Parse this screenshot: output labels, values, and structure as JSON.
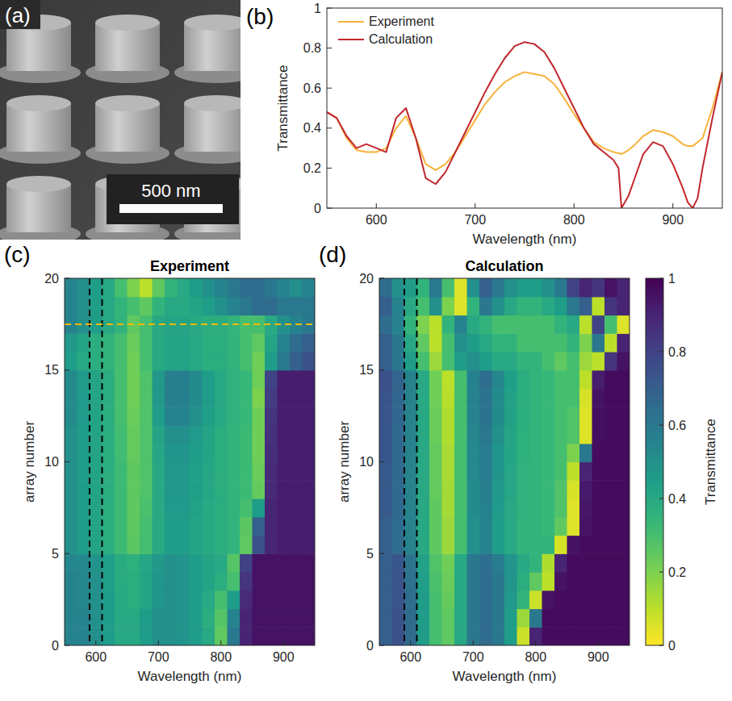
{
  "chart_data": [
    {
      "type": "line",
      "label": "(b)",
      "x_label": "Wavelength (nm)",
      "y_label": "Transmittance",
      "x": [
        550,
        560,
        570,
        580,
        590,
        600,
        610,
        620,
        630,
        640,
        650,
        660,
        670,
        680,
        690,
        700,
        710,
        720,
        730,
        740,
        750,
        760,
        770,
        780,
        790,
        800,
        810,
        820,
        830,
        840,
        845,
        848,
        855,
        860,
        870,
        880,
        890,
        900,
        910,
        915,
        920,
        925,
        930,
        940,
        950
      ],
      "series": [
        {
          "name": "Experiment",
          "color": "#f7b23b",
          "values": [
            0.48,
            0.45,
            0.35,
            0.29,
            0.28,
            0.28,
            0.3,
            0.4,
            0.46,
            0.35,
            0.22,
            0.19,
            0.22,
            0.28,
            0.36,
            0.44,
            0.52,
            0.58,
            0.63,
            0.66,
            0.68,
            0.67,
            0.66,
            0.62,
            0.55,
            0.47,
            0.4,
            0.33,
            0.3,
            0.28,
            0.275,
            0.27,
            0.29,
            0.31,
            0.36,
            0.39,
            0.38,
            0.36,
            0.32,
            0.31,
            0.31,
            0.33,
            0.35,
            0.5,
            0.68
          ]
        },
        {
          "name": "Calculation",
          "color": "#c1272d",
          "values": [
            0.48,
            0.45,
            0.36,
            0.3,
            0.32,
            0.3,
            0.28,
            0.45,
            0.5,
            0.35,
            0.15,
            0.12,
            0.18,
            0.28,
            0.38,
            0.48,
            0.58,
            0.67,
            0.75,
            0.81,
            0.83,
            0.82,
            0.78,
            0.7,
            0.6,
            0.5,
            0.4,
            0.32,
            0.28,
            0.24,
            0.2,
            0,
            0.06,
            0.13,
            0.27,
            0.33,
            0.31,
            0.22,
            0.1,
            0.03,
            0,
            0.05,
            0.2,
            0.45,
            0.68
          ]
        }
      ],
      "xlim": [
        550,
        950
      ],
      "ylim": [
        0,
        1
      ],
      "xticks": [
        600,
        700,
        800,
        900
      ],
      "yticks": [
        0,
        0.2,
        0.4,
        0.6,
        0.8,
        1
      ],
      "legend": "upper left"
    },
    {
      "type": "heatmap",
      "label": "(c)",
      "title": "Experiment",
      "x_label": "Wavelength (nm)",
      "y_label": "array number",
      "x_bins": [
        550,
        570,
        590,
        610,
        630,
        650,
        670,
        690,
        710,
        730,
        750,
        770,
        790,
        810,
        830,
        850,
        870,
        890,
        910,
        930,
        950
      ],
      "y_bins": [
        0,
        1,
        2,
        3,
        4,
        5,
        6,
        7,
        8,
        9,
        10,
        11,
        12,
        13,
        14,
        15,
        16,
        17,
        18,
        19,
        20
      ],
      "cells": [
        [
          0.55,
          0.55,
          0.5,
          0.45,
          0.4,
          0.4,
          0.45,
          0.5,
          0.5,
          0.48,
          0.45,
          0.4,
          0.25,
          0.6,
          0.9,
          0.95,
          0.95,
          0.95,
          0.95,
          0.95
        ],
        [
          0.55,
          0.55,
          0.5,
          0.45,
          0.4,
          0.4,
          0.45,
          0.5,
          0.5,
          0.48,
          0.45,
          0.38,
          0.27,
          0.55,
          0.9,
          0.95,
          0.95,
          0.95,
          0.95,
          0.95
        ],
        [
          0.55,
          0.54,
          0.5,
          0.45,
          0.4,
          0.38,
          0.42,
          0.48,
          0.5,
          0.48,
          0.45,
          0.4,
          0.3,
          0.45,
          0.88,
          0.95,
          0.95,
          0.95,
          0.95,
          0.95
        ],
        [
          0.55,
          0.54,
          0.5,
          0.44,
          0.39,
          0.38,
          0.42,
          0.48,
          0.5,
          0.48,
          0.45,
          0.42,
          0.38,
          0.3,
          0.85,
          0.95,
          0.95,
          0.95,
          0.95,
          0.95
        ],
        [
          0.54,
          0.53,
          0.49,
          0.44,
          0.39,
          0.37,
          0.41,
          0.47,
          0.5,
          0.48,
          0.45,
          0.42,
          0.4,
          0.27,
          0.8,
          0.95,
          0.95,
          0.95,
          0.95,
          0.95
        ],
        [
          0.5,
          0.45,
          0.42,
          0.38,
          0.32,
          0.26,
          0.3,
          0.4,
          0.45,
          0.45,
          0.42,
          0.4,
          0.38,
          0.35,
          0.25,
          0.75,
          0.9,
          0.92,
          0.92,
          0.92
        ],
        [
          0.5,
          0.45,
          0.42,
          0.38,
          0.32,
          0.25,
          0.3,
          0.4,
          0.45,
          0.45,
          0.42,
          0.4,
          0.38,
          0.35,
          0.26,
          0.7,
          0.9,
          0.92,
          0.92,
          0.92
        ],
        [
          0.5,
          0.45,
          0.42,
          0.38,
          0.32,
          0.25,
          0.29,
          0.4,
          0.46,
          0.46,
          0.43,
          0.4,
          0.38,
          0.35,
          0.3,
          0.45,
          0.9,
          0.92,
          0.92,
          0.92
        ],
        [
          0.5,
          0.45,
          0.42,
          0.38,
          0.32,
          0.25,
          0.28,
          0.4,
          0.47,
          0.47,
          0.44,
          0.41,
          0.38,
          0.35,
          0.32,
          0.24,
          0.88,
          0.92,
          0.92,
          0.92
        ],
        [
          0.5,
          0.45,
          0.42,
          0.38,
          0.32,
          0.25,
          0.28,
          0.4,
          0.47,
          0.47,
          0.44,
          0.41,
          0.38,
          0.35,
          0.32,
          0.23,
          0.88,
          0.92,
          0.92,
          0.92
        ],
        [
          0.5,
          0.45,
          0.42,
          0.38,
          0.31,
          0.24,
          0.28,
          0.41,
          0.48,
          0.48,
          0.45,
          0.42,
          0.38,
          0.35,
          0.32,
          0.22,
          0.87,
          0.92,
          0.92,
          0.92
        ],
        [
          0.5,
          0.45,
          0.42,
          0.38,
          0.31,
          0.24,
          0.28,
          0.42,
          0.5,
          0.5,
          0.46,
          0.42,
          0.38,
          0.35,
          0.32,
          0.22,
          0.86,
          0.92,
          0.92,
          0.92
        ],
        [
          0.52,
          0.46,
          0.42,
          0.38,
          0.3,
          0.23,
          0.28,
          0.45,
          0.55,
          0.55,
          0.5,
          0.44,
          0.4,
          0.36,
          0.33,
          0.22,
          0.85,
          0.92,
          0.92,
          0.92
        ],
        [
          0.52,
          0.46,
          0.42,
          0.38,
          0.3,
          0.22,
          0.28,
          0.47,
          0.57,
          0.57,
          0.52,
          0.45,
          0.4,
          0.36,
          0.33,
          0.2,
          0.82,
          0.92,
          0.92,
          0.92
        ],
        [
          0.52,
          0.46,
          0.42,
          0.38,
          0.3,
          0.22,
          0.28,
          0.47,
          0.57,
          0.57,
          0.52,
          0.45,
          0.4,
          0.36,
          0.33,
          0.22,
          0.8,
          0.92,
          0.92,
          0.92
        ],
        [
          0.45,
          0.4,
          0.38,
          0.35,
          0.3,
          0.22,
          0.3,
          0.4,
          0.42,
          0.42,
          0.4,
          0.38,
          0.38,
          0.35,
          0.3,
          0.22,
          0.45,
          0.6,
          0.7,
          0.75
        ],
        [
          0.47,
          0.42,
          0.38,
          0.35,
          0.3,
          0.23,
          0.3,
          0.4,
          0.42,
          0.42,
          0.4,
          0.38,
          0.38,
          0.35,
          0.3,
          0.25,
          0.42,
          0.55,
          0.65,
          0.7
        ],
        [
          0.55,
          0.5,
          0.45,
          0.4,
          0.35,
          0.25,
          0.3,
          0.4,
          0.42,
          0.42,
          0.4,
          0.38,
          0.38,
          0.35,
          0.3,
          0.3,
          0.4,
          0.5,
          0.55,
          0.6
        ],
        [
          0.55,
          0.5,
          0.45,
          0.4,
          0.35,
          0.3,
          0.25,
          0.35,
          0.4,
          0.4,
          0.42,
          0.45,
          0.5,
          0.55,
          0.6,
          0.65,
          0.65,
          0.6,
          0.6,
          0.6
        ],
        [
          0.55,
          0.5,
          0.45,
          0.4,
          0.3,
          0.2,
          0.1,
          0.25,
          0.35,
          0.4,
          0.45,
          0.5,
          0.55,
          0.6,
          0.65,
          0.65,
          0.6,
          0.55,
          0.5,
          0.55
        ]
      ],
      "xlim": [
        550,
        950
      ],
      "ylim": [
        0,
        20
      ],
      "xticks": [
        600,
        700,
        800,
        900
      ],
      "yticks": [
        0,
        5,
        10,
        15,
        20
      ],
      "reference_lines": [
        {
          "axis": "x",
          "value": 590,
          "color": "#000000",
          "line_style": "dashed"
        },
        {
          "axis": "x",
          "value": 610,
          "color": "#000000",
          "line_style": "dashed"
        },
        {
          "axis": "y",
          "value": 17.5,
          "color": "#f5b800",
          "line_style": "dashed"
        }
      ]
    },
    {
      "type": "heatmap",
      "label": "(d)",
      "title": "Calculation",
      "x_label": "Wavelength (nm)",
      "y_label": "array number",
      "x_bins": [
        550,
        570,
        590,
        610,
        630,
        650,
        670,
        690,
        710,
        730,
        750,
        770,
        790,
        810,
        830,
        850,
        870,
        890,
        910,
        930,
        950
      ],
      "y_bins": [
        0,
        1,
        2,
        3,
        4,
        5,
        6,
        7,
        8,
        9,
        10,
        11,
        12,
        13,
        14,
        15,
        16,
        17,
        18,
        19,
        20
      ],
      "cells": [
        [
          0.7,
          0.75,
          0.65,
          0.45,
          0.3,
          0.25,
          0.4,
          0.6,
          0.65,
          0.6,
          0.45,
          0.08,
          0.9,
          0.97,
          0.97,
          0.97,
          0.97,
          0.97,
          0.97,
          0.97
        ],
        [
          0.7,
          0.75,
          0.65,
          0.45,
          0.3,
          0.25,
          0.4,
          0.6,
          0.65,
          0.6,
          0.45,
          0.15,
          0.6,
          0.97,
          0.97,
          0.97,
          0.97,
          0.97,
          0.97,
          0.97
        ],
        [
          0.7,
          0.74,
          0.64,
          0.45,
          0.3,
          0.24,
          0.4,
          0.6,
          0.65,
          0.6,
          0.47,
          0.35,
          0.08,
          0.95,
          0.97,
          0.97,
          0.97,
          0.97,
          0.97,
          0.97
        ],
        [
          0.7,
          0.74,
          0.63,
          0.44,
          0.29,
          0.23,
          0.4,
          0.6,
          0.65,
          0.6,
          0.48,
          0.38,
          0.25,
          0.1,
          0.95,
          0.97,
          0.97,
          0.97,
          0.97,
          0.97
        ],
        [
          0.7,
          0.73,
          0.62,
          0.43,
          0.28,
          0.22,
          0.4,
          0.6,
          0.64,
          0.58,
          0.48,
          0.4,
          0.35,
          0.12,
          0.9,
          0.97,
          0.97,
          0.97,
          0.97,
          0.97
        ],
        [
          0.7,
          0.65,
          0.55,
          0.4,
          0.25,
          0.15,
          0.3,
          0.5,
          0.55,
          0.45,
          0.4,
          0.35,
          0.35,
          0.35,
          0.06,
          0.95,
          0.97,
          0.97,
          0.97,
          0.97
        ],
        [
          0.7,
          0.65,
          0.55,
          0.4,
          0.25,
          0.15,
          0.3,
          0.5,
          0.55,
          0.45,
          0.4,
          0.35,
          0.35,
          0.33,
          0.25,
          0.05,
          0.95,
          0.97,
          0.97,
          0.97
        ],
        [
          0.72,
          0.66,
          0.55,
          0.4,
          0.25,
          0.14,
          0.3,
          0.52,
          0.56,
          0.46,
          0.4,
          0.36,
          0.35,
          0.33,
          0.28,
          0.05,
          0.94,
          0.97,
          0.97,
          0.97
        ],
        [
          0.72,
          0.66,
          0.55,
          0.4,
          0.24,
          0.14,
          0.3,
          0.52,
          0.57,
          0.47,
          0.41,
          0.36,
          0.35,
          0.33,
          0.28,
          0.06,
          0.93,
          0.97,
          0.97,
          0.97
        ],
        [
          0.72,
          0.66,
          0.55,
          0.4,
          0.24,
          0.13,
          0.3,
          0.53,
          0.58,
          0.48,
          0.41,
          0.36,
          0.35,
          0.33,
          0.3,
          0.1,
          0.9,
          0.97,
          0.97,
          0.97
        ],
        [
          0.73,
          0.66,
          0.55,
          0.4,
          0.24,
          0.13,
          0.3,
          0.53,
          0.58,
          0.48,
          0.42,
          0.37,
          0.35,
          0.33,
          0.3,
          0.2,
          0.6,
          0.97,
          0.97,
          0.97
        ],
        [
          0.73,
          0.66,
          0.55,
          0.4,
          0.23,
          0.12,
          0.3,
          0.54,
          0.6,
          0.5,
          0.42,
          0.37,
          0.35,
          0.33,
          0.3,
          0.28,
          0.05,
          0.96,
          0.97,
          0.97
        ],
        [
          0.74,
          0.67,
          0.55,
          0.4,
          0.23,
          0.12,
          0.3,
          0.55,
          0.62,
          0.52,
          0.43,
          0.38,
          0.35,
          0.33,
          0.3,
          0.28,
          0.05,
          0.96,
          0.97,
          0.97
        ],
        [
          0.74,
          0.67,
          0.55,
          0.4,
          0.22,
          0.11,
          0.3,
          0.55,
          0.62,
          0.52,
          0.43,
          0.38,
          0.35,
          0.33,
          0.3,
          0.3,
          0.06,
          0.95,
          0.97,
          0.97
        ],
        [
          0.75,
          0.68,
          0.55,
          0.4,
          0.22,
          0.1,
          0.3,
          0.56,
          0.64,
          0.54,
          0.44,
          0.38,
          0.35,
          0.33,
          0.3,
          0.3,
          0.1,
          0.92,
          0.97,
          0.97
        ],
        [
          0.7,
          0.6,
          0.45,
          0.3,
          0.15,
          0.3,
          0.45,
          0.5,
          0.45,
          0.4,
          0.4,
          0.35,
          0.35,
          0.3,
          0.25,
          0.3,
          0.15,
          0.1,
          0.85,
          0.95
        ],
        [
          0.7,
          0.6,
          0.4,
          0.25,
          0.1,
          0.3,
          0.5,
          0.45,
          0.4,
          0.35,
          0.35,
          0.3,
          0.3,
          0.3,
          0.3,
          0.35,
          0.2,
          0.6,
          0.1,
          0.9
        ],
        [
          0.65,
          0.55,
          0.35,
          0.2,
          0.1,
          0.35,
          0.55,
          0.4,
          0.35,
          0.3,
          0.3,
          0.3,
          0.3,
          0.3,
          0.35,
          0.4,
          0.1,
          0.8,
          0.3,
          0.05
        ],
        [
          0.7,
          0.55,
          0.4,
          0.3,
          0.5,
          0.2,
          0.05,
          0.35,
          0.6,
          0.5,
          0.4,
          0.35,
          0.35,
          0.4,
          0.45,
          0.6,
          0.7,
          0.1,
          0.85,
          0.9
        ],
        [
          0.65,
          0.5,
          0.45,
          0.35,
          0.6,
          0.3,
          0.05,
          0.5,
          0.7,
          0.6,
          0.5,
          0.45,
          0.45,
          0.5,
          0.6,
          0.8,
          0.9,
          0.85,
          0.95,
          0.9
        ]
      ],
      "xlim": [
        550,
        950
      ],
      "ylim": [
        0,
        20
      ],
      "xticks": [
        600,
        700,
        800,
        900
      ],
      "yticks": [
        0,
        5,
        10,
        15,
        20
      ],
      "reference_lines": [
        {
          "axis": "x",
          "value": 590,
          "color": "#000000",
          "line_style": "dashed"
        },
        {
          "axis": "x",
          "value": 610,
          "color": "#000000",
          "line_style": "dashed"
        }
      ],
      "colorbar": {
        "label": "Transmittance",
        "range": [
          0,
          1
        ],
        "ticks": [
          0,
          0.2,
          0.4,
          0.6,
          0.8,
          1
        ]
      }
    }
  ],
  "image": {
    "label": "(a)",
    "scale_bar": "500 nm"
  }
}
